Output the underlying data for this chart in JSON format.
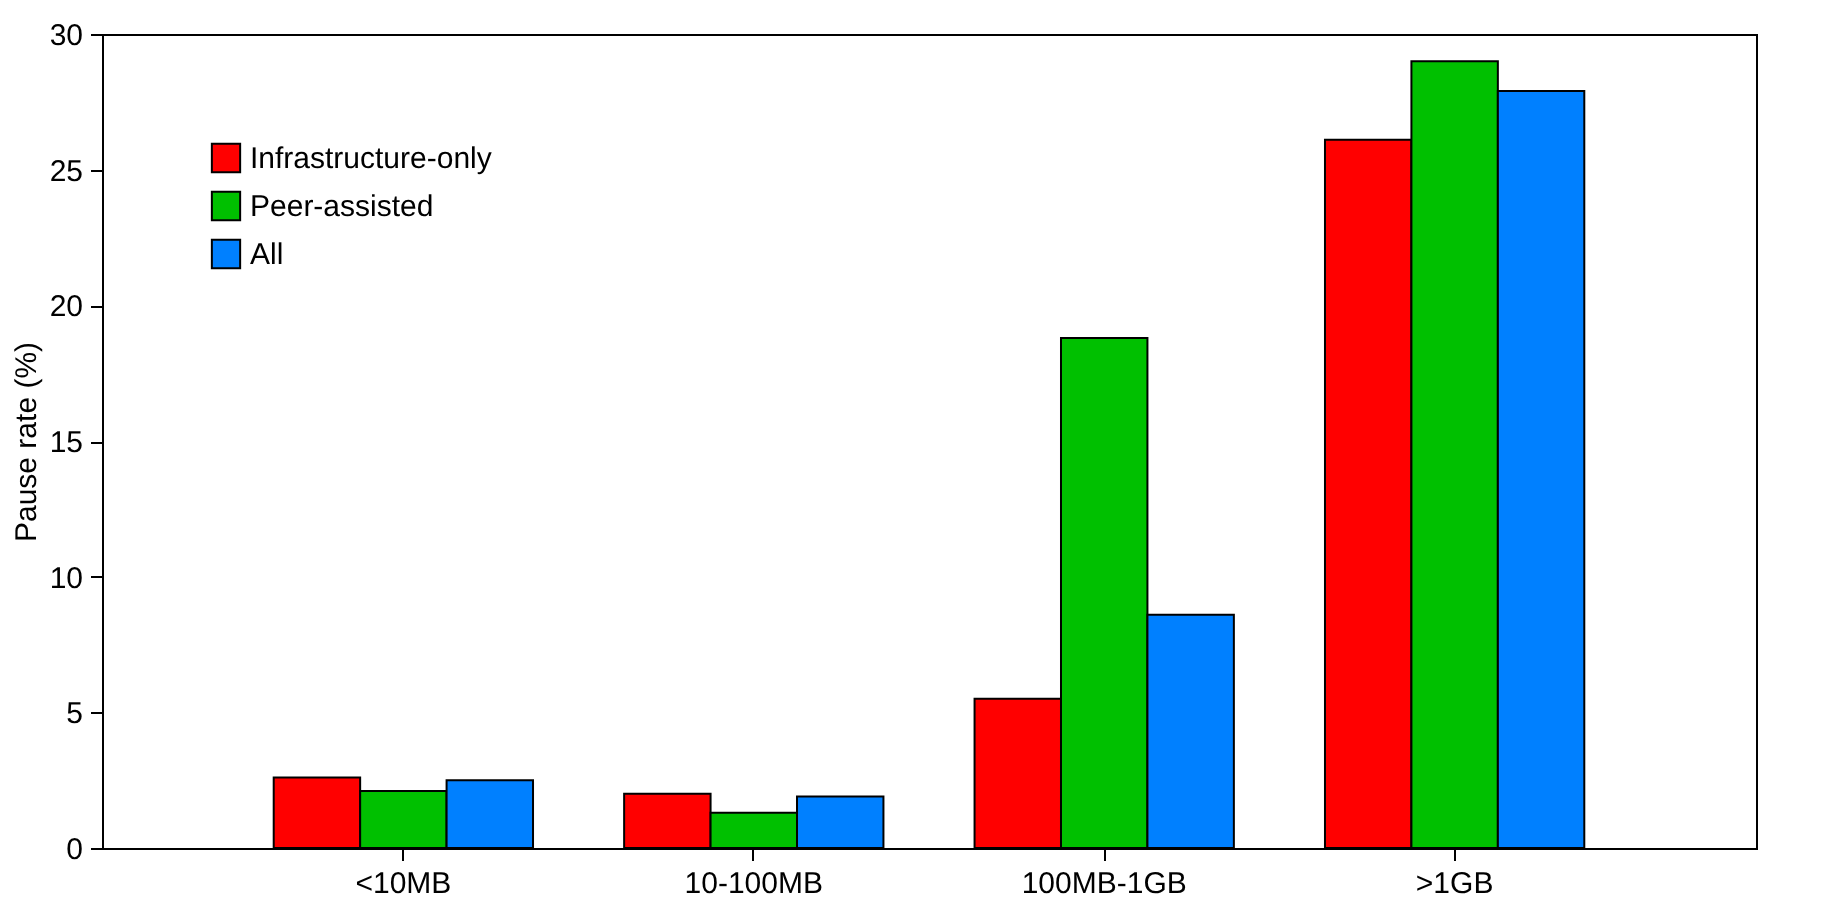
{
  "chart_data": {
    "type": "bar",
    "ylabel": "Pause rate (%)",
    "categories": [
      "<10MB",
      "10-100MB",
      "100MB-1GB",
      ">1GB"
    ],
    "series": [
      {
        "name": "Infrastructure-only",
        "color": "#ff0000",
        "values": [
          2.6,
          2.0,
          5.5,
          26.1
        ]
      },
      {
        "name": "Peer-assisted",
        "color": "#00c000",
        "values": [
          2.1,
          1.3,
          18.8,
          29.0
        ]
      },
      {
        "name": "All",
        "color": "#0080ff",
        "values": [
          2.5,
          1.9,
          8.6,
          27.9
        ]
      }
    ],
    "ylim": [
      0,
      30
    ],
    "yticks": [
      0,
      5,
      10,
      15,
      20,
      25,
      30
    ],
    "grid": false,
    "legend": "top left"
  }
}
